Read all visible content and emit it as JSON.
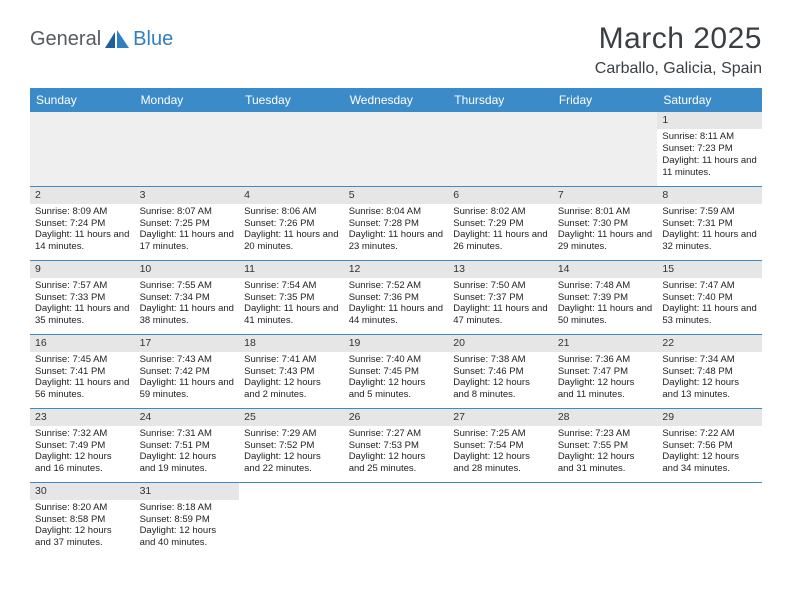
{
  "brand": {
    "part1": "General",
    "part2": "Blue"
  },
  "title": "March 2025",
  "location": "Carballo, Galicia, Spain",
  "colors": {
    "header_bg": "#3b8bc9",
    "header_text": "#ffffff",
    "daynum_bg": "#e6e6e6",
    "border": "#3b8bc9",
    "logo_gray": "#555b60",
    "logo_blue": "#2f7fc1"
  },
  "weekdays": [
    "Sunday",
    "Monday",
    "Tuesday",
    "Wednesday",
    "Thursday",
    "Friday",
    "Saturday"
  ],
  "weeks": [
    [
      {
        "blank": true
      },
      {
        "blank": true
      },
      {
        "blank": true
      },
      {
        "blank": true
      },
      {
        "blank": true
      },
      {
        "blank": true
      },
      {
        "day": "1",
        "sunrise": "Sunrise: 8:11 AM",
        "sunset": "Sunset: 7:23 PM",
        "daylight": "Daylight: 11 hours and 11 minutes."
      }
    ],
    [
      {
        "day": "2",
        "sunrise": "Sunrise: 8:09 AM",
        "sunset": "Sunset: 7:24 PM",
        "daylight": "Daylight: 11 hours and 14 minutes."
      },
      {
        "day": "3",
        "sunrise": "Sunrise: 8:07 AM",
        "sunset": "Sunset: 7:25 PM",
        "daylight": "Daylight: 11 hours and 17 minutes."
      },
      {
        "day": "4",
        "sunrise": "Sunrise: 8:06 AM",
        "sunset": "Sunset: 7:26 PM",
        "daylight": "Daylight: 11 hours and 20 minutes."
      },
      {
        "day": "5",
        "sunrise": "Sunrise: 8:04 AM",
        "sunset": "Sunset: 7:28 PM",
        "daylight": "Daylight: 11 hours and 23 minutes."
      },
      {
        "day": "6",
        "sunrise": "Sunrise: 8:02 AM",
        "sunset": "Sunset: 7:29 PM",
        "daylight": "Daylight: 11 hours and 26 minutes."
      },
      {
        "day": "7",
        "sunrise": "Sunrise: 8:01 AM",
        "sunset": "Sunset: 7:30 PM",
        "daylight": "Daylight: 11 hours and 29 minutes."
      },
      {
        "day": "8",
        "sunrise": "Sunrise: 7:59 AM",
        "sunset": "Sunset: 7:31 PM",
        "daylight": "Daylight: 11 hours and 32 minutes."
      }
    ],
    [
      {
        "day": "9",
        "sunrise": "Sunrise: 7:57 AM",
        "sunset": "Sunset: 7:33 PM",
        "daylight": "Daylight: 11 hours and 35 minutes."
      },
      {
        "day": "10",
        "sunrise": "Sunrise: 7:55 AM",
        "sunset": "Sunset: 7:34 PM",
        "daylight": "Daylight: 11 hours and 38 minutes."
      },
      {
        "day": "11",
        "sunrise": "Sunrise: 7:54 AM",
        "sunset": "Sunset: 7:35 PM",
        "daylight": "Daylight: 11 hours and 41 minutes."
      },
      {
        "day": "12",
        "sunrise": "Sunrise: 7:52 AM",
        "sunset": "Sunset: 7:36 PM",
        "daylight": "Daylight: 11 hours and 44 minutes."
      },
      {
        "day": "13",
        "sunrise": "Sunrise: 7:50 AM",
        "sunset": "Sunset: 7:37 PM",
        "daylight": "Daylight: 11 hours and 47 minutes."
      },
      {
        "day": "14",
        "sunrise": "Sunrise: 7:48 AM",
        "sunset": "Sunset: 7:39 PM",
        "daylight": "Daylight: 11 hours and 50 minutes."
      },
      {
        "day": "15",
        "sunrise": "Sunrise: 7:47 AM",
        "sunset": "Sunset: 7:40 PM",
        "daylight": "Daylight: 11 hours and 53 minutes."
      }
    ],
    [
      {
        "day": "16",
        "sunrise": "Sunrise: 7:45 AM",
        "sunset": "Sunset: 7:41 PM",
        "daylight": "Daylight: 11 hours and 56 minutes."
      },
      {
        "day": "17",
        "sunrise": "Sunrise: 7:43 AM",
        "sunset": "Sunset: 7:42 PM",
        "daylight": "Daylight: 11 hours and 59 minutes."
      },
      {
        "day": "18",
        "sunrise": "Sunrise: 7:41 AM",
        "sunset": "Sunset: 7:43 PM",
        "daylight": "Daylight: 12 hours and 2 minutes."
      },
      {
        "day": "19",
        "sunrise": "Sunrise: 7:40 AM",
        "sunset": "Sunset: 7:45 PM",
        "daylight": "Daylight: 12 hours and 5 minutes."
      },
      {
        "day": "20",
        "sunrise": "Sunrise: 7:38 AM",
        "sunset": "Sunset: 7:46 PM",
        "daylight": "Daylight: 12 hours and 8 minutes."
      },
      {
        "day": "21",
        "sunrise": "Sunrise: 7:36 AM",
        "sunset": "Sunset: 7:47 PM",
        "daylight": "Daylight: 12 hours and 11 minutes."
      },
      {
        "day": "22",
        "sunrise": "Sunrise: 7:34 AM",
        "sunset": "Sunset: 7:48 PM",
        "daylight": "Daylight: 12 hours and 13 minutes."
      }
    ],
    [
      {
        "day": "23",
        "sunrise": "Sunrise: 7:32 AM",
        "sunset": "Sunset: 7:49 PM",
        "daylight": "Daylight: 12 hours and 16 minutes."
      },
      {
        "day": "24",
        "sunrise": "Sunrise: 7:31 AM",
        "sunset": "Sunset: 7:51 PM",
        "daylight": "Daylight: 12 hours and 19 minutes."
      },
      {
        "day": "25",
        "sunrise": "Sunrise: 7:29 AM",
        "sunset": "Sunset: 7:52 PM",
        "daylight": "Daylight: 12 hours and 22 minutes."
      },
      {
        "day": "26",
        "sunrise": "Sunrise: 7:27 AM",
        "sunset": "Sunset: 7:53 PM",
        "daylight": "Daylight: 12 hours and 25 minutes."
      },
      {
        "day": "27",
        "sunrise": "Sunrise: 7:25 AM",
        "sunset": "Sunset: 7:54 PM",
        "daylight": "Daylight: 12 hours and 28 minutes."
      },
      {
        "day": "28",
        "sunrise": "Sunrise: 7:23 AM",
        "sunset": "Sunset: 7:55 PM",
        "daylight": "Daylight: 12 hours and 31 minutes."
      },
      {
        "day": "29",
        "sunrise": "Sunrise: 7:22 AM",
        "sunset": "Sunset: 7:56 PM",
        "daylight": "Daylight: 12 hours and 34 minutes."
      }
    ],
    [
      {
        "day": "30",
        "sunrise": "Sunrise: 8:20 AM",
        "sunset": "Sunset: 8:58 PM",
        "daylight": "Daylight: 12 hours and 37 minutes."
      },
      {
        "day": "31",
        "sunrise": "Sunrise: 8:18 AM",
        "sunset": "Sunset: 8:59 PM",
        "daylight": "Daylight: 12 hours and 40 minutes."
      },
      {
        "blank": true
      },
      {
        "blank": true
      },
      {
        "blank": true
      },
      {
        "blank": true
      },
      {
        "blank": true
      }
    ]
  ]
}
